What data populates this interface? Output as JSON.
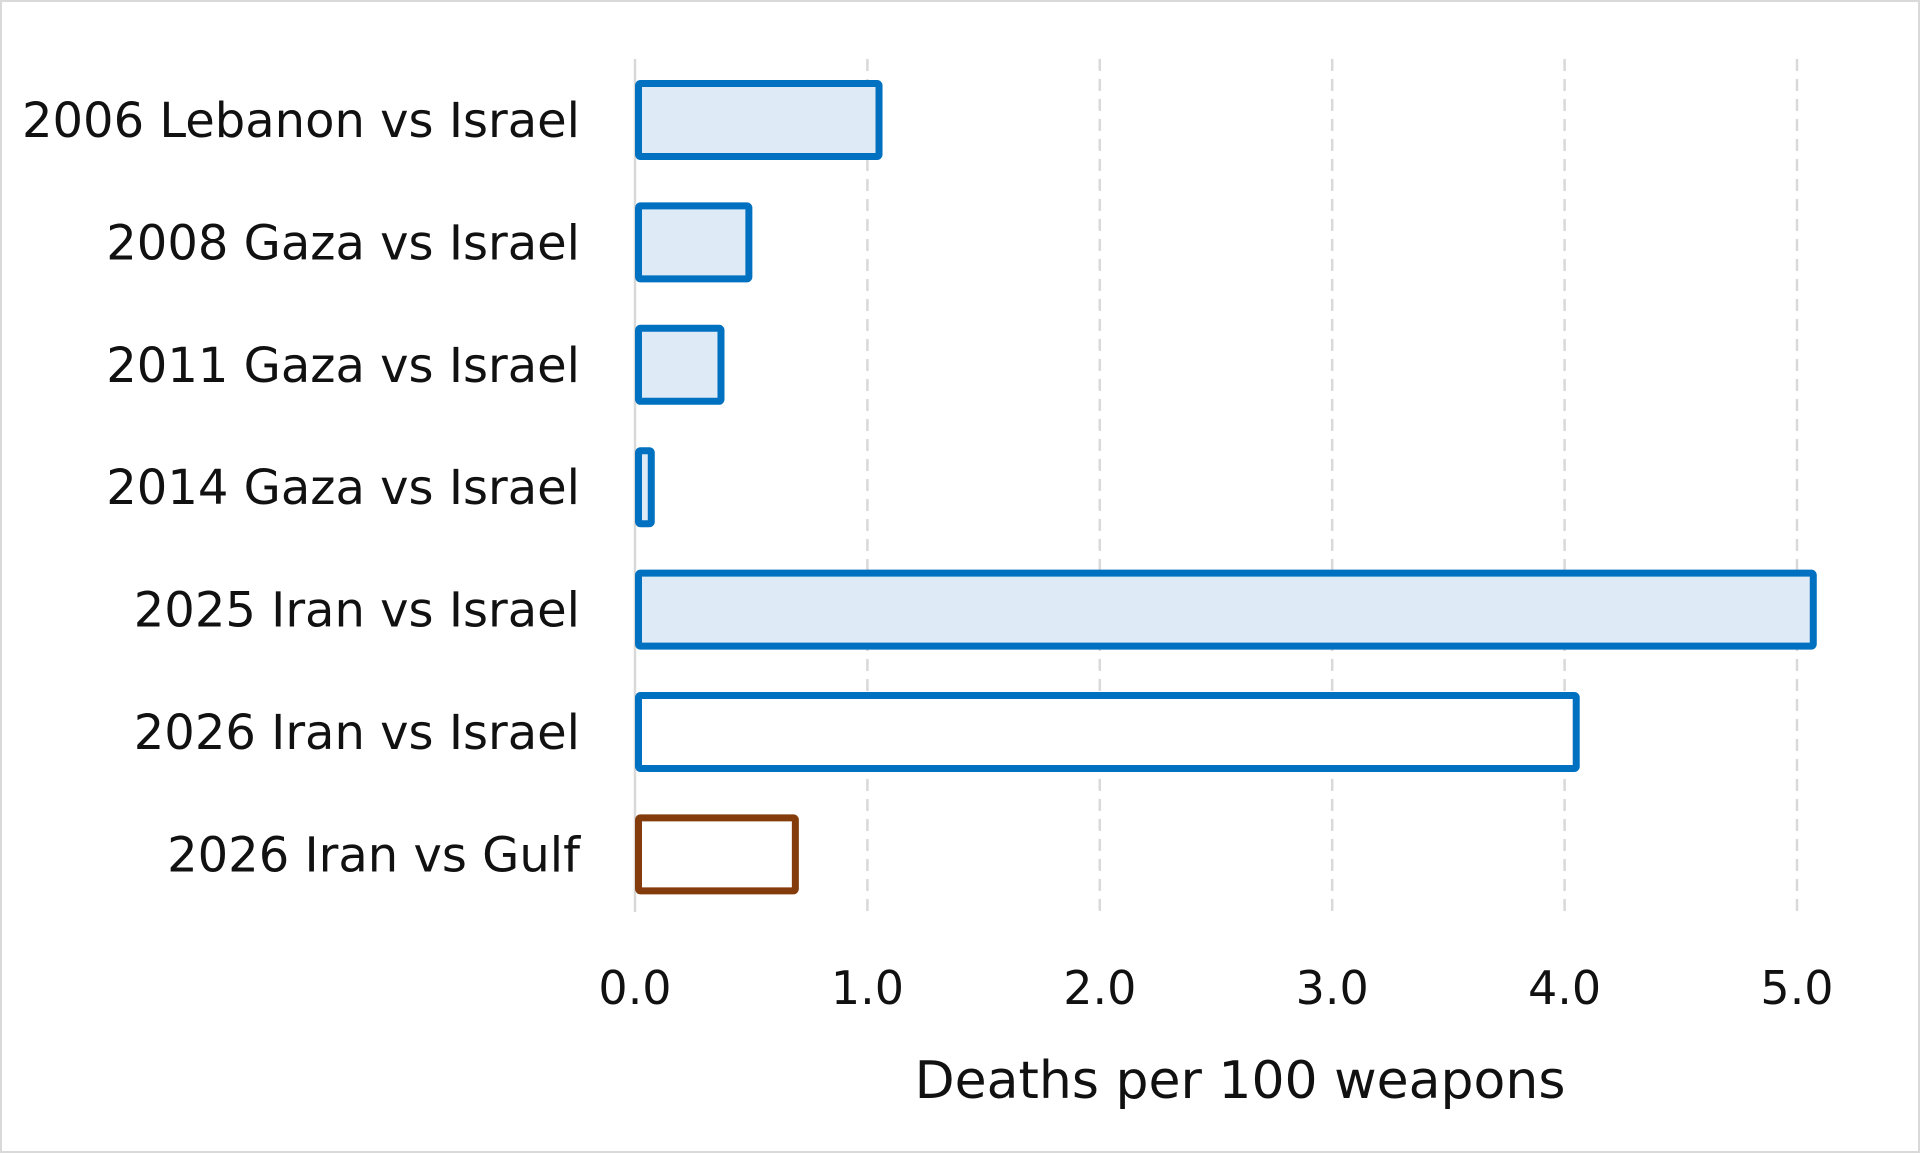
{
  "chart_data": {
    "type": "bar",
    "orientation": "horizontal",
    "categories": [
      "2006 Lebanon vs Israel",
      "2008 Gaza vs Israel",
      "2011 Gaza vs Israel",
      "2014 Gaza vs Israel",
      "2025 Iran vs Israel",
      "2026 Iran vs Israel",
      "2026 Iran vs Gulf"
    ],
    "values": [
      1.05,
      0.49,
      0.37,
      0.07,
      5.07,
      4.05,
      0.69
    ],
    "bar_styles": [
      {
        "stroke": "#0070c0",
        "fill": "#deebf7"
      },
      {
        "stroke": "#0070c0",
        "fill": "#deebf7"
      },
      {
        "stroke": "#0070c0",
        "fill": "#deebf7"
      },
      {
        "stroke": "#0070c0",
        "fill": "#deebf7"
      },
      {
        "stroke": "#0070c0",
        "fill": "#deebf7"
      },
      {
        "stroke": "#0070c0",
        "fill": "#ffffff"
      },
      {
        "stroke": "#843c0c",
        "fill": "#ffffff"
      }
    ],
    "xlabel": "Deaths per 100 weapons",
    "ylabel": "",
    "title": "",
    "xlim": [
      0,
      5.0
    ],
    "xticks": [
      "0.0",
      "1.0",
      "2.0",
      "3.0",
      "4.0",
      "5.0"
    ],
    "grid": "vertical dashed",
    "legend": "none"
  }
}
